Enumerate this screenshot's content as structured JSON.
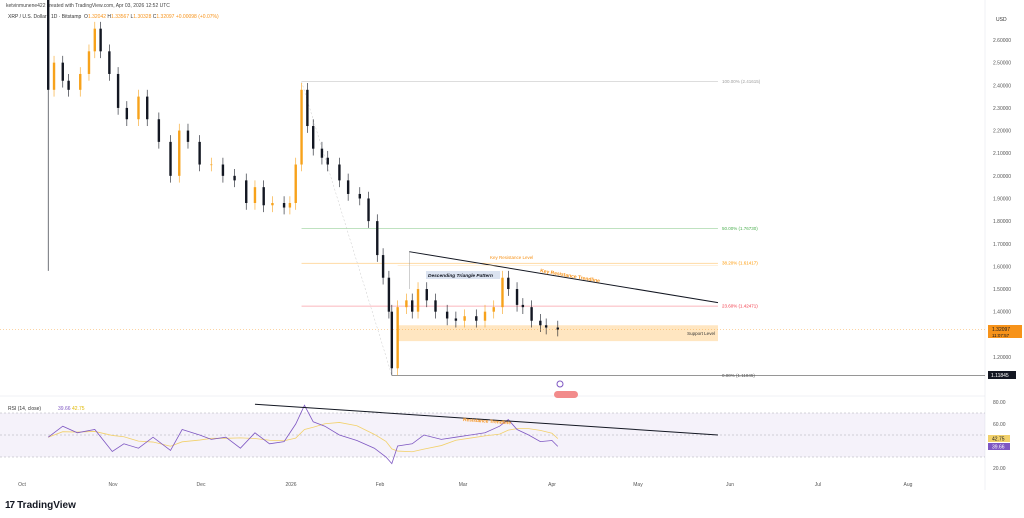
{
  "header": {
    "credit": "ketvinmunene422 created with TradingView.com, Apr 03, 2026 12:52 UTC",
    "symbol": "XRP / U.S. Dollar · 1D · Bitstamp",
    "o_label": "O",
    "o": "1.32042",
    "h_label": "H",
    "h": "1.33567",
    "l_label": "L",
    "l": "1.30328",
    "c_label": "C",
    "c": "1.32097",
    "change": "+0.00098 (+0.07%)"
  },
  "footer": {
    "brand": "TradingView",
    "mark": "17"
  },
  "colors": {
    "up": "#f7a21b",
    "down": "#131722",
    "rsi": "#7e57c2",
    "rsi_ma": "#f2d16b",
    "fib100": "#9e9e9e",
    "fib50": "#4caf50",
    "fib382": "#ff9800",
    "fib236": "#f23645",
    "support": "#ffe0b2"
  },
  "chart_data": [
    {
      "type": "candlestick",
      "ylabel": "USD",
      "ylim": [
        1.08,
        2.72
      ],
      "yticks": [
        "2.60000",
        "2.50000",
        "2.40000",
        "2.30000",
        "2.20000",
        "2.10000",
        "2.00000",
        "1.90000",
        "1.80000",
        "1.70000",
        "1.60000",
        "1.50000",
        "1.40000",
        "1.20000"
      ],
      "xticks": [
        "Oct",
        "Nov",
        "Dec",
        "2026",
        "Feb",
        "Mar",
        "Apr",
        "May",
        "Jun",
        "Jul",
        "Aug"
      ],
      "first": {
        "date": "2025-10-10",
        "open": 2.8,
        "close": 2.38,
        "high": 2.84,
        "low": 1.58
      },
      "closes": [
        [
          "2025-10-12",
          2.5
        ],
        [
          "2025-10-15",
          2.42
        ],
        [
          "2025-10-17",
          2.38
        ],
        [
          "2025-10-21",
          2.45
        ],
        [
          "2025-10-24",
          2.55
        ],
        [
          "2025-10-26",
          2.65
        ],
        [
          "2025-10-28",
          2.55
        ],
        [
          "2025-10-31",
          2.45
        ],
        [
          "2025-11-03",
          2.3
        ],
        [
          "2025-11-06",
          2.25
        ],
        [
          "2025-11-10",
          2.35
        ],
        [
          "2025-11-13",
          2.25
        ],
        [
          "2025-11-17",
          2.15
        ],
        [
          "2025-11-21",
          2.0
        ],
        [
          "2025-11-24",
          2.2
        ],
        [
          "2025-11-27",
          2.15
        ],
        [
          "2025-12-01",
          2.05
        ],
        [
          "2025-12-05",
          2.05
        ],
        [
          "2025-12-09",
          2.0
        ],
        [
          "2025-12-13",
          1.98
        ],
        [
          "2025-12-17",
          1.88
        ],
        [
          "2025-12-20",
          1.95
        ],
        [
          "2025-12-23",
          1.87
        ],
        [
          "2025-12-26",
          1.88
        ],
        [
          "2025-12-30",
          1.86
        ],
        [
          "2026-01-01",
          1.88
        ],
        [
          "2026-01-03",
          2.05
        ],
        [
          "2026-01-05",
          2.38
        ],
        [
          "2026-01-07",
          2.22
        ],
        [
          "2026-01-09",
          2.12
        ],
        [
          "2026-01-12",
          2.08
        ],
        [
          "2026-01-14",
          2.05
        ],
        [
          "2026-01-18",
          1.98
        ],
        [
          "2026-01-21",
          1.92
        ],
        [
          "2026-01-25",
          1.9
        ],
        [
          "2026-01-28",
          1.8
        ],
        [
          "2026-01-31",
          1.65
        ],
        [
          "2026-02-02",
          1.55
        ],
        [
          "2026-02-04",
          1.4
        ],
        [
          "2026-02-05",
          1.15
        ],
        [
          "2026-02-07",
          1.42
        ],
        [
          "2026-02-10",
          1.45
        ],
        [
          "2026-02-12",
          1.4
        ],
        [
          "2026-02-14",
          1.5
        ],
        [
          "2026-02-17",
          1.45
        ],
        [
          "2026-02-20",
          1.4
        ],
        [
          "2026-02-24",
          1.37
        ],
        [
          "2026-02-27",
          1.36
        ],
        [
          "2026-03-02",
          1.38
        ],
        [
          "2026-03-06",
          1.36
        ],
        [
          "2026-03-09",
          1.4
        ],
        [
          "2026-03-12",
          1.42
        ],
        [
          "2026-03-15",
          1.55
        ],
        [
          "2026-03-17",
          1.5
        ],
        [
          "2026-03-20",
          1.43
        ],
        [
          "2026-03-22",
          1.42
        ],
        [
          "2026-03-25",
          1.36
        ],
        [
          "2026-03-28",
          1.34
        ],
        [
          "2026-03-30",
          1.33
        ],
        [
          "2026-04-03",
          1.32097
        ]
      ],
      "last_price": {
        "value": "1.32097",
        "countdown": "11:07:57"
      },
      "low_marker": "1.11845",
      "fib": [
        {
          "label": "100.00% (2.41615)",
          "value": 2.41615,
          "color": "#9e9e9e"
        },
        {
          "label": "50.00% (1.76730)",
          "value": 1.7673,
          "color": "#4caf50"
        },
        {
          "label": "38.20% (1.61417)",
          "value": 1.61417,
          "color": "#ff9800"
        },
        {
          "label": "23.60% (1.42471)",
          "value": 1.42471,
          "color": "#f23645"
        },
        {
          "label": "0.00% (1.11845)",
          "value": 1.11845,
          "color": "#555555"
        }
      ],
      "annotations": {
        "triangle": "Descending Triangle Pattern",
        "key_level": "Key Resistance Level",
        "trendline": "Key Resistance Trendline",
        "support": "Support Level"
      },
      "trendline": [
        [
          "2026-02-11",
          1.665
        ],
        [
          "2026-05-28",
          1.44
        ]
      ],
      "support_zone": [
        1.27,
        1.34
      ]
    },
    {
      "type": "line",
      "title": "RSI (14, close)",
      "value": "39.66",
      "ma_value": "42.75",
      "ylim": [
        10,
        90
      ],
      "yticks": [
        "80.00",
        "60.00",
        "20.00"
      ],
      "bands": [
        70,
        50,
        30
      ],
      "values": [
        [
          "2025-10-10",
          48
        ],
        [
          "2025-10-15",
          58
        ],
        [
          "2025-10-20",
          52
        ],
        [
          "2025-10-26",
          55
        ],
        [
          "2025-11-01",
          35
        ],
        [
          "2025-11-05",
          42
        ],
        [
          "2025-11-10",
          38
        ],
        [
          "2025-11-15",
          48
        ],
        [
          "2025-11-21",
          36
        ],
        [
          "2025-11-25",
          55
        ],
        [
          "2025-12-01",
          50
        ],
        [
          "2025-12-05",
          46
        ],
        [
          "2025-12-10",
          48
        ],
        [
          "2025-12-15",
          38
        ],
        [
          "2025-12-20",
          52
        ],
        [
          "2025-12-25",
          42
        ],
        [
          "2025-12-30",
          44
        ],
        [
          "2026-01-03",
          60
        ],
        [
          "2026-01-06",
          77
        ],
        [
          "2026-01-09",
          62
        ],
        [
          "2026-01-13",
          58
        ],
        [
          "2026-01-18",
          50
        ],
        [
          "2026-01-24",
          45
        ],
        [
          "2026-01-30",
          38
        ],
        [
          "2026-02-03",
          30
        ],
        [
          "2026-02-05",
          24
        ],
        [
          "2026-02-07",
          40
        ],
        [
          "2026-02-12",
          42
        ],
        [
          "2026-02-16",
          50
        ],
        [
          "2026-02-22",
          46
        ],
        [
          "2026-02-27",
          48
        ],
        [
          "2026-03-04",
          50
        ],
        [
          "2026-03-09",
          52
        ],
        [
          "2026-03-14",
          58
        ],
        [
          "2026-03-17",
          64
        ],
        [
          "2026-03-20",
          55
        ],
        [
          "2026-03-24",
          50
        ],
        [
          "2026-03-28",
          44
        ],
        [
          "2026-04-01",
          45
        ],
        [
          "2026-04-03",
          39.66
        ]
      ],
      "trend_label": "Resistance Trendline",
      "trendline": [
        [
          "2025-12-20",
          78
        ],
        [
          "2026-05-28",
          50
        ]
      ]
    }
  ]
}
